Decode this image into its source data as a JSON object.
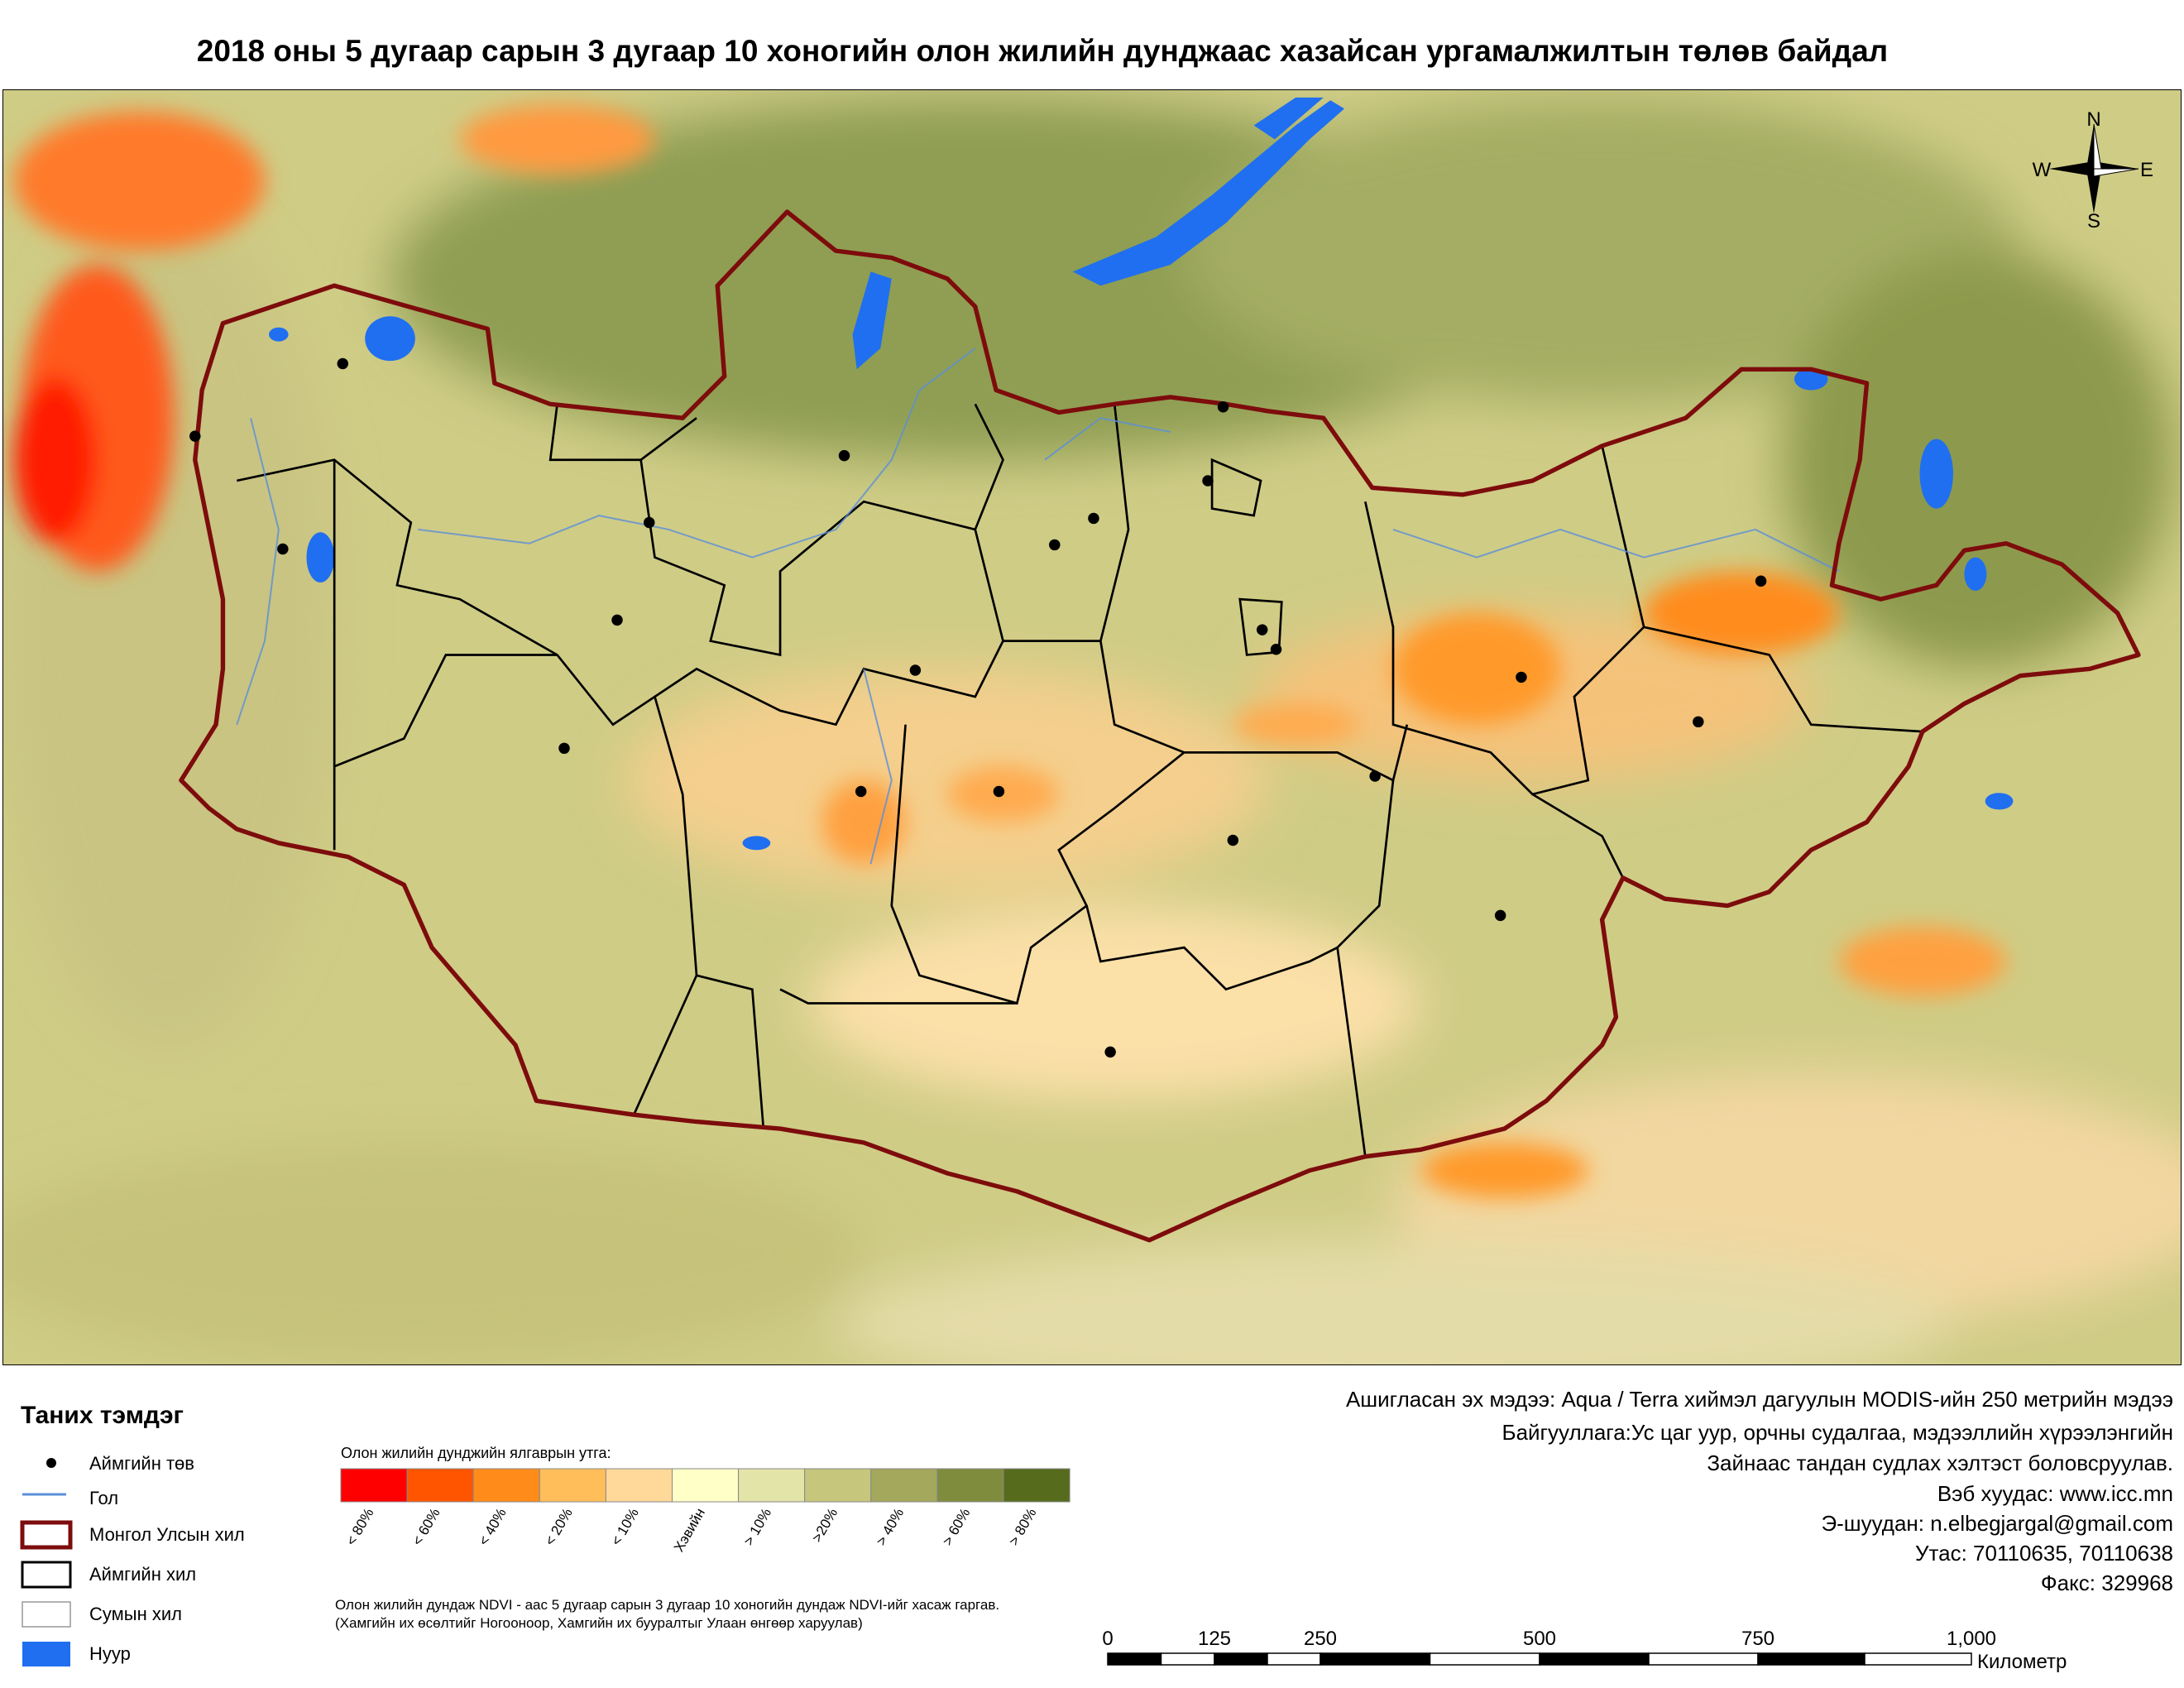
{
  "header": {
    "title": "2018 оны 5 дугаар сарын 3 дугаар 10 хоногийн олон жилийн дунджаас хазайсан ургамалжилтын төлөв байдал"
  },
  "compass": {
    "n": "N",
    "w": "W",
    "e": "E",
    "s": "S"
  },
  "legend": {
    "title": "Таних тэмдэг",
    "items": [
      "Аймгийн төв",
      "Гол",
      "Монгол Улсын хил",
      "Аймгийн хил",
      "Сумын хил",
      "Нуур"
    ]
  },
  "color_scale": {
    "title": "Олон жилийн дунджийн ялгаврын утга:",
    "classes": [
      {
        "label": "< 80%",
        "color": "#ff0000"
      },
      {
        "label": "< 60%",
        "color": "#ff5500"
      },
      {
        "label": "< 40%",
        "color": "#ff8c1a"
      },
      {
        "label": "< 20%",
        "color": "#ffbe5a"
      },
      {
        "label": "< 10%",
        "color": "#ffd99a"
      },
      {
        "label": "Хэвийн",
        "color": "#ffffc8"
      },
      {
        "label": "> 10%",
        "color": "#e3e4a8"
      },
      {
        "label": ">20%",
        "color": "#c6c67c"
      },
      {
        "label": "> 40%",
        "color": "#a3a85c"
      },
      {
        "label": "> 60%",
        "color": "#7f8c3e"
      },
      {
        "label": "> 80%",
        "color": "#566b1c"
      }
    ]
  },
  "notes": [
    "Олон жилийн дундаж NDVI - аас 5 дугаар сарын 3 дугаар 10 хоногийн дундаж NDVI-ийг хасаж гаргав.",
    "(Хамгийн их өсөлтийг Ногооноор,  Хамгийн их бууралтыг Улаан өнгөөр харуулав)"
  ],
  "credits": [
    "Ашигласан эх мэдээ: Aqua / Terra хиймэл дагуулын MODIS-ийн 250 метрийн мэдээ",
    "Байгууллага:Ус цаг уур, орчны судалгаа, мэдээллийн хүрээлэнгийн",
    "Зайнаас тандан судлах хэлтэст боловсруулав.",
    "Вэб хуудас: www.icc.mn",
    "Э-шуудан: n.elbegjargal@gmail.com",
    "Утас: 70110635, 70110638",
    "Факс: 329968"
  ],
  "scale_bar": {
    "labels": [
      "0",
      "125",
      "250",
      "500",
      "750",
      "1,000"
    ],
    "unit": "Километр"
  }
}
